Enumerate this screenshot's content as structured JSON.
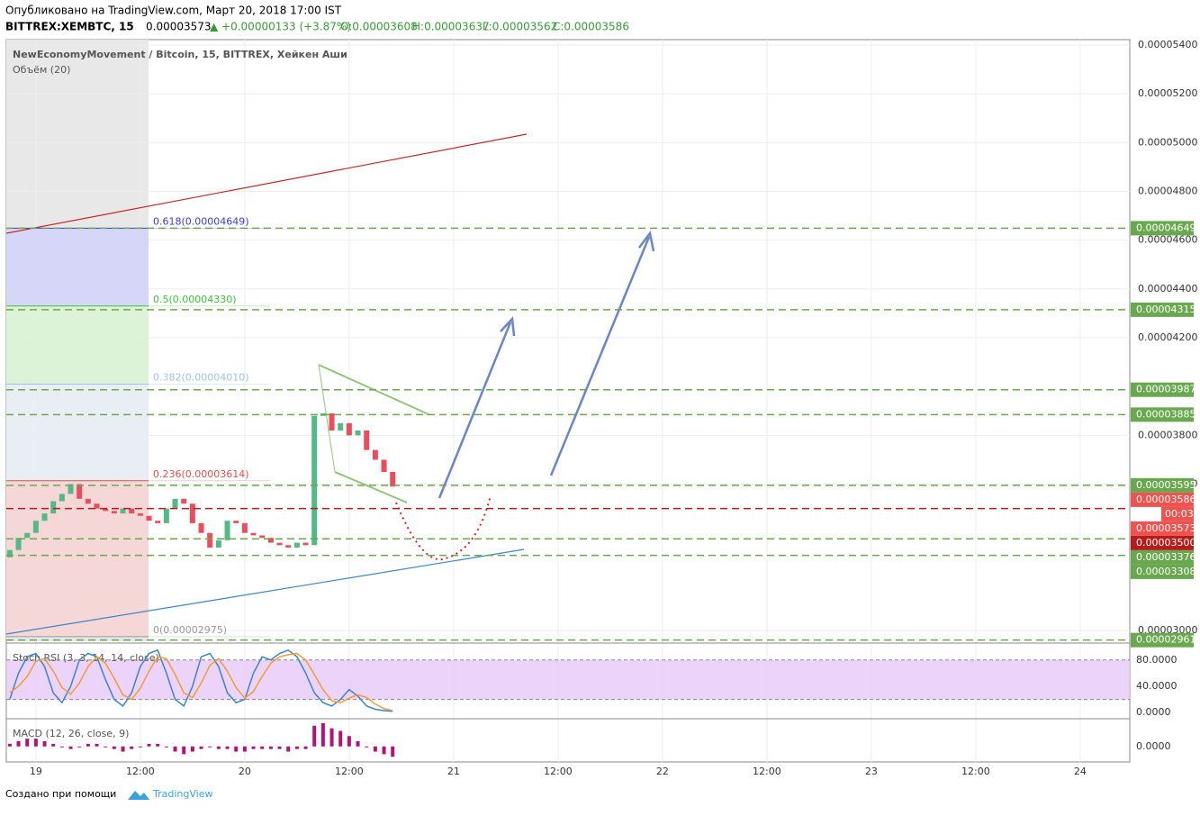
{
  "header": {
    "published": "Опубликовано на TradingView.com, Март 20, 2018 17:00 IST",
    "symbol": "BITTREX:XEMBTC, 15",
    "price": "0.00003573",
    "change": "▲ +0.00000133 (+3.87%)",
    "open": "O:0.00003608",
    "high": "H:0.00003637",
    "low": "L:0.00003562",
    "close": "C:0.00003586"
  },
  "footer": {
    "made_with": "Создано при помощи",
    "brand": "TradingView"
  },
  "chart_data": [
    {
      "type": "candlestick",
      "title": "NewEconomyMovement / Bitcoin, 15, BITTREX, Хейкен Аши",
      "subtitle": "Объём (20)",
      "up_color": "#53b987",
      "down_color": "#eb4d5c",
      "x": [
        -3,
        -2,
        -1,
        0,
        1,
        2,
        3,
        4,
        5,
        6,
        7,
        8,
        9,
        10,
        11,
        12,
        13,
        14,
        15,
        16,
        17,
        18,
        19,
        20,
        21,
        22,
        23,
        24,
        25,
        26,
        27,
        28,
        29,
        30,
        31,
        32,
        33,
        34,
        35,
        36,
        37,
        38,
        39,
        40,
        41
      ],
      "open": [
        3.3e-05,
        3.33e-05,
        3.38e-05,
        3.4e-05,
        3.45e-05,
        3.48e-05,
        3.53e-05,
        3.56e-05,
        3.6e-05,
        3.54e-05,
        3.52e-05,
        3.5e-05,
        3.49e-05,
        3.48e-05,
        3.5e-05,
        3.48e-05,
        3.47e-05,
        3.45e-05,
        3.44e-05,
        3.5e-05,
        3.54e-05,
        3.52e-05,
        3.44e-05,
        3.4e-05,
        3.34e-05,
        3.37e-05,
        3.45e-05,
        3.44e-05,
        3.4e-05,
        3.39e-05,
        3.38e-05,
        3.36e-05,
        3.35e-05,
        3.34e-05,
        3.36e-05,
        3.35e-05,
        3.88e-05,
        3.89e-05,
        3.82e-05,
        3.85e-05,
        3.8e-05,
        3.82e-05,
        3.74e-05,
        3.7e-05,
        3.65e-05
      ],
      "close": [
        3.33e-05,
        3.38e-05,
        3.4e-05,
        3.45e-05,
        3.48e-05,
        3.53e-05,
        3.56e-05,
        3.6e-05,
        3.54e-05,
        3.52e-05,
        3.5e-05,
        3.49e-05,
        3.48e-05,
        3.5e-05,
        3.48e-05,
        3.47e-05,
        3.45e-05,
        3.44e-05,
        3.5e-05,
        3.54e-05,
        3.52e-05,
        3.44e-05,
        3.4e-05,
        3.34e-05,
        3.37e-05,
        3.45e-05,
        3.44e-05,
        3.4e-05,
        3.39e-05,
        3.38e-05,
        3.36e-05,
        3.35e-05,
        3.34e-05,
        3.36e-05,
        3.35e-05,
        3.88e-05,
        3.89e-05,
        3.82e-05,
        3.85e-05,
        3.8e-05,
        3.82e-05,
        3.74e-05,
        3.7e-05,
        3.65e-05,
        3.59e-05
      ],
      "xlim": [
        -3.4,
        125.7
      ],
      "xticks": [
        {
          "value": 0,
          "label": "19"
        },
        {
          "value": 12,
          "label": "12:00"
        },
        {
          "value": 24,
          "label": "20"
        },
        {
          "value": 36,
          "label": "12:00"
        },
        {
          "value": 48,
          "label": "21"
        },
        {
          "value": 60,
          "label": "12:00"
        },
        {
          "value": 72,
          "label": "22"
        },
        {
          "value": 84,
          "label": "12:00"
        },
        {
          "value": 96,
          "label": "23"
        },
        {
          "value": 108,
          "label": "12:00"
        },
        {
          "value": 120,
          "label": "24"
        }
      ],
      "ylim": [
        2.956e-05,
        5.422e-05
      ],
      "yticks": [
        {
          "value": 5.4e-05,
          "label": "0.00005400"
        },
        {
          "value": 5.2e-05,
          "label": "0.00005200"
        },
        {
          "value": 5e-05,
          "label": "0.00005000"
        },
        {
          "value": 4.8e-05,
          "label": "0.00004800"
        },
        {
          "value": 4.6e-05,
          "label": "0.00004600"
        },
        {
          "value": 4.4e-05,
          "label": "0.00004400"
        },
        {
          "value": 4.2e-05,
          "label": "0.00004200"
        },
        {
          "value": 3.8e-05,
          "label": "0.00003800"
        },
        {
          "value": 3.6e-05,
          "label": "0.00003600"
        },
        {
          "value": 3e-05,
          "label": "0.00003000"
        }
      ],
      "fib_levels": [
        {
          "label": "0.618(0.00004649)",
          "value": 4.649e-05,
          "color": "#3b3bd6",
          "fill": "#d2d2fa"
        },
        {
          "label": "0.5(0.00004330)",
          "value": 4.33e-05,
          "color": "#3cbf3c",
          "fill": "#d9f5d5"
        },
        {
          "label": "0.382(0.00004010)",
          "value": 4.01e-05,
          "color": "#9fc3e8",
          "fill": "#e9eff7"
        },
        {
          "label": "0.236(0.00003614)",
          "value": 3.614e-05,
          "color": "#d9534f",
          "fill": "#f6d3d2"
        },
        {
          "label": "0(0.00002975)",
          "value": 2.975e-05,
          "color": "#999999",
          "fill": "#f6d3d2"
        }
      ],
      "price_tags": [
        {
          "value": 4.649e-05,
          "label": "0.00004649",
          "color": "#6aa84f",
          "line": true
        },
        {
          "value": 4.315e-05,
          "label": "0.00004315",
          "color": "#6aa84f",
          "line": true
        },
        {
          "value": 3.987e-05,
          "label": "0.00003987",
          "color": "#6aa84f",
          "line": true
        },
        {
          "value": 3.885e-05,
          "label": "0.00003885",
          "color": "#6aa84f",
          "line": true
        },
        {
          "value": 3.595e-05,
          "label": "0.00003595",
          "color": "#6aa84f",
          "line": true
        },
        {
          "value": 3.586e-05,
          "label": "0.00003586",
          "color": "#ef5350",
          "line": false
        },
        {
          "value": 3.573e-05,
          "label": "0.00003573",
          "color": "#ef5350",
          "line": false
        },
        {
          "value": 3.5e-05,
          "label": "0.00003500",
          "color": "#b71c1c",
          "line": true
        },
        {
          "value": 3.376e-05,
          "label": "0.00003376",
          "color": "#6aa84f",
          "line": true
        },
        {
          "value": 3.308e-05,
          "label": "0.00003308",
          "color": "#6aa84f",
          "line": true
        },
        {
          "value": 2.961e-05,
          "label": "0.00002961",
          "color": "#6aa84f",
          "line": true
        }
      ],
      "countdown": "00:03"
    },
    {
      "type": "stoch",
      "title": "Stoch RSI (3, 3, 14, 14, close)",
      "band": [
        20,
        80
      ],
      "band_color": "#e6c8f7",
      "ylim": [
        -8,
        103
      ],
      "yticks": [
        {
          "value": 80,
          "label": "80.0000"
        },
        {
          "value": 40,
          "label": "40.0000"
        },
        {
          "value": 0,
          "label": "0.0000"
        }
      ],
      "series": [
        {
          "name": "K",
          "color": "#3d85c6",
          "values": [
            20,
            60,
            85,
            90,
            70,
            30,
            15,
            40,
            80,
            90,
            85,
            50,
            20,
            10,
            30,
            70,
            90,
            95,
            60,
            20,
            10,
            40,
            85,
            90,
            70,
            30,
            15,
            20,
            60,
            85,
            80,
            90,
            95,
            85,
            60,
            30,
            15,
            10,
            20,
            35,
            25,
            10,
            5,
            3,
            2
          ]
        },
        {
          "name": "D",
          "color": "#f19c38",
          "values": [
            30,
            40,
            55,
            78,
            82,
            63,
            38,
            28,
            45,
            70,
            85,
            75,
            52,
            27,
            20,
            37,
            63,
            85,
            82,
            58,
            30,
            23,
            45,
            72,
            82,
            63,
            38,
            22,
            32,
            55,
            75,
            85,
            88,
            90,
            80,
            58,
            35,
            18,
            15,
            22,
            27,
            23,
            13,
            6,
            3
          ]
        }
      ]
    },
    {
      "type": "macd",
      "title": "MACD (12, 26, close, 9)",
      "color": "#b0137a",
      "ylim": [
        -6e-08,
        1e-07
      ],
      "yticks": [
        {
          "value": 0,
          "label": "0.0000"
        }
      ],
      "values": [
        1e-08,
        2e-08,
        3e-08,
        3e-08,
        2e-08,
        1e-08,
        0,
        -1e-08,
        0,
        1e-08,
        1e-08,
        0,
        -1e-08,
        -2e-08,
        -1e-08,
        0,
        1e-08,
        1e-08,
        0,
        -2e-08,
        -3e-08,
        -2e-08,
        -1e-08,
        0,
        -1e-08,
        -1e-08,
        -2e-08,
        -2e-08,
        -1e-08,
        -1e-08,
        -1e-08,
        -1e-08,
        -2e-08,
        -1e-08,
        -1e-08,
        8e-08,
        9e-08,
        7e-08,
        6e-08,
        4e-08,
        2e-08,
        0,
        -2e-08,
        -3e-08,
        -4e-08
      ]
    }
  ]
}
